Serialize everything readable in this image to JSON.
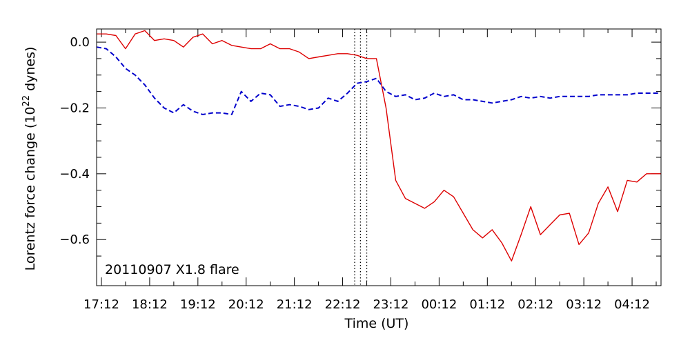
{
  "chart_data": {
    "type": "line",
    "xlabel": "Time (UT)",
    "ylabel_main": "Lorentz force change (10",
    "ylabel_exp": "22",
    "ylabel_tail": " dynes)",
    "annotation": "20110907 X1.8 flare",
    "xlim": [
      -0.1,
      11.6
    ],
    "ylim": [
      -0.74,
      0.04
    ],
    "x_ticks": [
      {
        "value": 0,
        "label": "17:12"
      },
      {
        "value": 1,
        "label": "18:12"
      },
      {
        "value": 2,
        "label": "19:12"
      },
      {
        "value": 3,
        "label": "20:12"
      },
      {
        "value": 4,
        "label": "21:12"
      },
      {
        "value": 5,
        "label": "22:12"
      },
      {
        "value": 6,
        "label": "23:12"
      },
      {
        "value": 7,
        "label": "00:12"
      },
      {
        "value": 8,
        "label": "01:12"
      },
      {
        "value": 9,
        "label": "02:12"
      },
      {
        "value": 10,
        "label": "03:12"
      },
      {
        "value": 11,
        "label": "04:12"
      }
    ],
    "y_ticks": [
      {
        "value": 0.0,
        "label": "0.0"
      },
      {
        "value": -0.2,
        "label": "−0.2"
      },
      {
        "value": -0.4,
        "label": "−0.4"
      },
      {
        "value": -0.6,
        "label": "−0.6"
      }
    ],
    "vlines": [
      5.25,
      5.37,
      5.5
    ],
    "series": [
      {
        "color": "#dd0000",
        "dash": "solid",
        "x": [
          -0.1,
          0.1,
          0.3,
          0.5,
          0.7,
          0.9,
          1.1,
          1.3,
          1.5,
          1.7,
          1.9,
          2.1,
          2.3,
          2.5,
          2.7,
          2.9,
          3.1,
          3.3,
          3.5,
          3.7,
          3.9,
          4.1,
          4.3,
          4.5,
          4.7,
          4.9,
          5.1,
          5.3,
          5.5,
          5.7,
          5.9,
          6.1,
          6.3,
          6.5,
          6.7,
          6.9,
          7.1,
          7.3,
          7.5,
          7.7,
          7.9,
          8.1,
          8.3,
          8.5,
          8.7,
          8.9,
          9.1,
          9.3,
          9.5,
          9.7,
          9.9,
          10.1,
          10.3,
          10.5,
          10.7,
          10.9,
          11.1,
          11.3,
          11.5,
          11.6
        ],
        "y": [
          0.025,
          0.025,
          0.02,
          -0.02,
          0.025,
          0.035,
          0.005,
          0.01,
          0.005,
          -0.015,
          0.015,
          0.025,
          -0.005,
          0.005,
          -0.01,
          -0.015,
          -0.02,
          -0.02,
          -0.005,
          -0.02,
          -0.02,
          -0.03,
          -0.05,
          -0.045,
          -0.04,
          -0.035,
          -0.035,
          -0.04,
          -0.05,
          -0.05,
          -0.2,
          -0.42,
          -0.475,
          -0.49,
          -0.505,
          -0.485,
          -0.45,
          -0.47,
          -0.52,
          -0.57,
          -0.595,
          -0.57,
          -0.61,
          -0.665,
          -0.585,
          -0.5,
          -0.585,
          -0.555,
          -0.525,
          -0.52,
          -0.615,
          -0.58,
          -0.49,
          -0.44,
          -0.515,
          -0.42,
          -0.425,
          -0.4,
          -0.4,
          -0.4
        ]
      },
      {
        "color": "#0000cc",
        "dash": "dashed",
        "x": [
          -0.1,
          0.1,
          0.3,
          0.5,
          0.7,
          0.9,
          1.1,
          1.3,
          1.5,
          1.7,
          1.9,
          2.1,
          2.3,
          2.5,
          2.7,
          2.9,
          3.1,
          3.3,
          3.5,
          3.7,
          3.9,
          4.1,
          4.3,
          4.5,
          4.7,
          4.9,
          5.1,
          5.3,
          5.5,
          5.7,
          5.9,
          6.1,
          6.3,
          6.5,
          6.7,
          6.9,
          7.1,
          7.3,
          7.5,
          7.7,
          7.9,
          8.1,
          8.3,
          8.5,
          8.7,
          8.9,
          9.1,
          9.3,
          9.5,
          9.7,
          9.9,
          10.1,
          10.3,
          10.5,
          10.7,
          10.9,
          11.1,
          11.3,
          11.5,
          11.6
        ],
        "y": [
          -0.015,
          -0.02,
          -0.045,
          -0.08,
          -0.1,
          -0.13,
          -0.17,
          -0.2,
          -0.215,
          -0.19,
          -0.21,
          -0.22,
          -0.215,
          -0.215,
          -0.22,
          -0.15,
          -0.18,
          -0.155,
          -0.16,
          -0.195,
          -0.19,
          -0.195,
          -0.205,
          -0.2,
          -0.17,
          -0.18,
          -0.155,
          -0.125,
          -0.12,
          -0.11,
          -0.15,
          -0.165,
          -0.16,
          -0.175,
          -0.17,
          -0.155,
          -0.165,
          -0.16,
          -0.175,
          -0.175,
          -0.18,
          -0.185,
          -0.18,
          -0.175,
          -0.165,
          -0.17,
          -0.165,
          -0.17,
          -0.165,
          -0.165,
          -0.165,
          -0.165,
          -0.16,
          -0.16,
          -0.16,
          -0.16,
          -0.155,
          -0.155,
          -0.155,
          -0.155
        ]
      }
    ]
  }
}
